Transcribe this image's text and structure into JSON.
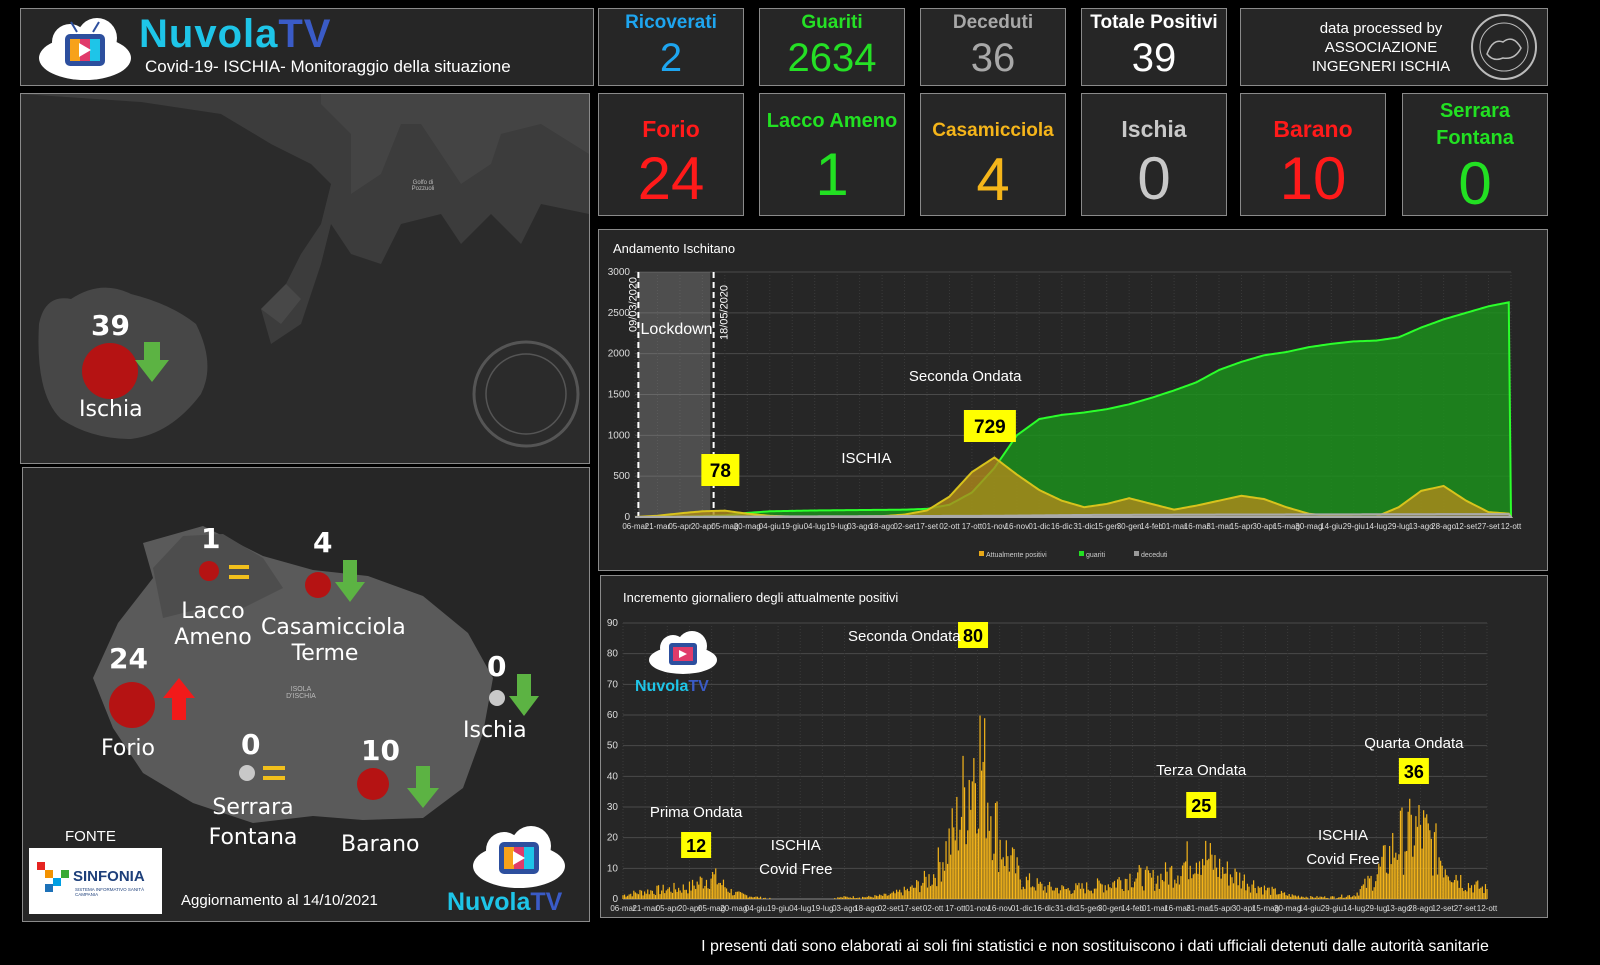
{
  "header": {
    "brand_part1": "Nuvola",
    "brand_part2": "TV",
    "subtitle": "Covid-19- ISCHIA- Monitoraggio della situazione"
  },
  "stats": [
    {
      "label": "Ricoverati",
      "value": "2",
      "color": "#1ea5ef"
    },
    {
      "label": "Guariti",
      "value": "2634",
      "color": "#25e025"
    },
    {
      "label": "Deceduti",
      "value": "36",
      "color": "#a8a8a8"
    },
    {
      "label": "Totale Positivi",
      "value": "39",
      "color": "#ffffff"
    }
  ],
  "processed_by": {
    "line1": "data processed by",
    "line2": "ASSOCIAZIONE",
    "line3": "INGEGNERI ISCHIA"
  },
  "municipalities": [
    {
      "label": "Forio",
      "value": "24",
      "color": "#ff1a1a"
    },
    {
      "label": "Lacco Ameno",
      "value": "1",
      "color": "#22e022"
    },
    {
      "label": "Casamicciola",
      "value": "4",
      "color": "#f5b51a"
    },
    {
      "label": "Ischia",
      "value": "0",
      "color": "#c8c8c8"
    },
    {
      "label": "Barano",
      "value": "10",
      "color": "#ff1a1a"
    },
    {
      "label": "Serrara Fontana",
      "value": "0",
      "color": "#22e022"
    }
  ],
  "overview_map": {
    "number": "39",
    "label": "Ischia",
    "gulf_label": "Golfo di Pozzuoli",
    "seal_text": "ASSOCIAZIONE INGEGNERI ISCHIA"
  },
  "detail_map": {
    "island_label": "ISOLA D'ISCHIA",
    "places": [
      {
        "name": "Lacco Ameno",
        "number": "1",
        "trend": "equal"
      },
      {
        "name": "Casamicciola Terme",
        "number": "4",
        "trend": "down"
      },
      {
        "name": "Forio",
        "number": "24",
        "trend": "up"
      },
      {
        "name": "Ischia",
        "number": "0",
        "trend": "down"
      },
      {
        "name": "Serrara Fontana",
        "number": "0",
        "trend": "equal"
      },
      {
        "name": "Barano",
        "number": "10",
        "trend": "down"
      }
    ],
    "fonte": "FONTE",
    "source_name": "SINFONIA",
    "source_sub": "SISTEMA INFORMATIVO SANITÀ CAMPANIA",
    "update": "Aggiornamento al 14/10/2021"
  },
  "icons": {
    "trend_up": "arrow-up-icon",
    "trend_down": "arrow-down-icon",
    "trend_equal": "equal-icon"
  },
  "chart_data": [
    {
      "type": "area",
      "title": "Andamento Ischitano",
      "ylim": [
        0,
        3000
      ],
      "yticks": [
        0,
        500,
        1000,
        1500,
        2000,
        2500,
        3000
      ],
      "xtick_labels": [
        "06-mar",
        "21-mar",
        "05-apr",
        "20-apr",
        "05-mag",
        "20-mag",
        "04-giu",
        "19-giu",
        "04-lug",
        "19-lug",
        "03-ago",
        "18-ago",
        "02-set",
        "17-set",
        "02-ott",
        "17-ott",
        "01-nov",
        "16-nov",
        "01-dic",
        "16-dic",
        "31-dic",
        "15-gen",
        "30-gen",
        "14-feb",
        "01-mar",
        "16-mar",
        "31-mar",
        "15-apr",
        "30-apr",
        "15-mag",
        "30-mag",
        "14-giu",
        "29-giu",
        "14-lug",
        "29-lug",
        "13-ago",
        "28-ago",
        "12-set",
        "27-set",
        "12-ott"
      ],
      "legend": [
        "Attualmente positivi",
        "guariti",
        "deceduti"
      ],
      "series_colors": [
        "#e8a817",
        "#22e022",
        "#9a9a9a"
      ],
      "annotations": {
        "lockdown": "Lockdown",
        "date_start": "09/03/2020",
        "date_end": "18/05/2020",
        "label_ischia": "ISCHIA",
        "seconda_ondata": "Seconda Ondata",
        "peak1": "78",
        "peak2": "729"
      },
      "series": [
        {
          "name": "Attualmente positivi",
          "points": [
            [
              0,
              0
            ],
            [
              1,
              15
            ],
            [
              2,
              45
            ],
            [
              3,
              70
            ],
            [
              4,
              78
            ],
            [
              5,
              40
            ],
            [
              6,
              15
            ],
            [
              7,
              5
            ],
            [
              8,
              3
            ],
            [
              9,
              3
            ],
            [
              10,
              5
            ],
            [
              11,
              10
            ],
            [
              12,
              30
            ],
            [
              13,
              80
            ],
            [
              14,
              250
            ],
            [
              15,
              550
            ],
            [
              16,
              729
            ],
            [
              17,
              520
            ],
            [
              18,
              330
            ],
            [
              19,
              200
            ],
            [
              20,
              120
            ],
            [
              21,
              160
            ],
            [
              22,
              230
            ],
            [
              23,
              160
            ],
            [
              24,
              90
            ],
            [
              25,
              140
            ],
            [
              26,
              200
            ],
            [
              27,
              260
            ],
            [
              28,
              220
            ],
            [
              29,
              120
            ],
            [
              30,
              40
            ],
            [
              31,
              10
            ],
            [
              32,
              5
            ],
            [
              33,
              5
            ],
            [
              34,
              120
            ],
            [
              35,
              320
            ],
            [
              36,
              380
            ],
            [
              37,
              200
            ],
            [
              38,
              60
            ],
            [
              39,
              39
            ]
          ]
        },
        {
          "name": "guariti",
          "points": [
            [
              0,
              0
            ],
            [
              2,
              5
            ],
            [
              4,
              20
            ],
            [
              5,
              50
            ],
            [
              6,
              70
            ],
            [
              8,
              80
            ],
            [
              10,
              85
            ],
            [
              12,
              90
            ],
            [
              13,
              100
            ],
            [
              14,
              150
            ],
            [
              15,
              300
            ],
            [
              16,
              600
            ],
            [
              17,
              1000
            ],
            [
              18,
              1200
            ],
            [
              19,
              1250
            ],
            [
              20,
              1280
            ],
            [
              21,
              1320
            ],
            [
              22,
              1380
            ],
            [
              23,
              1460
            ],
            [
              24,
              1550
            ],
            [
              25,
              1650
            ],
            [
              26,
              1800
            ],
            [
              27,
              1900
            ],
            [
              28,
              1980
            ],
            [
              29,
              2020
            ],
            [
              30,
              2080
            ],
            [
              31,
              2120
            ],
            [
              32,
              2150
            ],
            [
              33,
              2160
            ],
            [
              34,
              2200
            ],
            [
              35,
              2320
            ],
            [
              36,
              2420
            ],
            [
              37,
              2500
            ],
            [
              38,
              2580
            ],
            [
              39,
              2634
            ]
          ]
        },
        {
          "name": "deceduti",
          "points": [
            [
              0,
              0
            ],
            [
              4,
              5
            ],
            [
              16,
              15
            ],
            [
              20,
              25
            ],
            [
              26,
              30
            ],
            [
              39,
              36
            ]
          ]
        }
      ]
    },
    {
      "type": "bar",
      "title": "Incremento giornaliero degli attualmente positivi",
      "ylim": [
        0,
        90
      ],
      "yticks": [
        0,
        10,
        20,
        30,
        40,
        50,
        60,
        70,
        80,
        90
      ],
      "xtick_labels": [
        "06-mar",
        "21-mar",
        "05-apr",
        "20-apr",
        "05-mag",
        "20-mag",
        "04-giu",
        "19-giu",
        "04-lug",
        "19-lug",
        "03-ago",
        "18-ago",
        "02-set",
        "17-set",
        "02-ott",
        "17-ott",
        "01-nov",
        "16-nov",
        "01-dic",
        "16-dic",
        "31-dic",
        "15-gen",
        "30-gen",
        "14-feb",
        "01-mar",
        "16-mar",
        "31-mar",
        "15-apr",
        "30-apr",
        "15-mag",
        "30-mag",
        "14-giu",
        "29-giu",
        "14-lug",
        "29-lug",
        "13-ago",
        "28-ago",
        "12-set",
        "27-set",
        "12-ott"
      ],
      "series_color": "#f5b51a",
      "annotations": {
        "prima_ondata": "Prima Ondata",
        "seconda_ondata": "Seconda Ondata",
        "terza_ondata": "Terza Ondata",
        "quarta_ondata": "Quarta Ondata",
        "ischia_covid_free_1": "ISCHIA Covid Free",
        "ischia_covid_free_2": "ISCHIA Covid Free",
        "peak1": "12",
        "peak2": "80",
        "peak3": "25",
        "peak4": "36"
      },
      "envelope": [
        [
          0,
          2
        ],
        [
          1,
          4
        ],
        [
          2,
          5
        ],
        [
          3,
          6
        ],
        [
          4,
          12
        ],
        [
          5,
          3
        ],
        [
          6,
          1
        ],
        [
          7,
          0
        ],
        [
          8,
          0
        ],
        [
          9,
          0
        ],
        [
          10,
          1
        ],
        [
          11,
          1
        ],
        [
          12,
          2
        ],
        [
          13,
          5
        ],
        [
          14,
          12
        ],
        [
          15,
          35
        ],
        [
          16,
          80
        ],
        [
          17,
          30
        ],
        [
          18,
          10
        ],
        [
          19,
          6
        ],
        [
          20,
          5
        ],
        [
          21,
          6
        ],
        [
          22,
          8
        ],
        [
          23,
          12
        ],
        [
          24,
          10
        ],
        [
          25,
          15
        ],
        [
          26,
          25
        ],
        [
          27,
          15
        ],
        [
          28,
          10
        ],
        [
          29,
          5
        ],
        [
          30,
          2
        ],
        [
          31,
          1
        ],
        [
          32,
          1
        ],
        [
          33,
          2
        ],
        [
          34,
          12
        ],
        [
          35,
          30
        ],
        [
          36,
          36
        ],
        [
          37,
          20
        ],
        [
          38,
          8
        ],
        [
          39,
          5
        ]
      ]
    }
  ],
  "footer": "I presenti dati sono elaborati ai soli fini statistici e non sostituiscono i dati ufficiali detenuti dalle autorità sanitarie"
}
